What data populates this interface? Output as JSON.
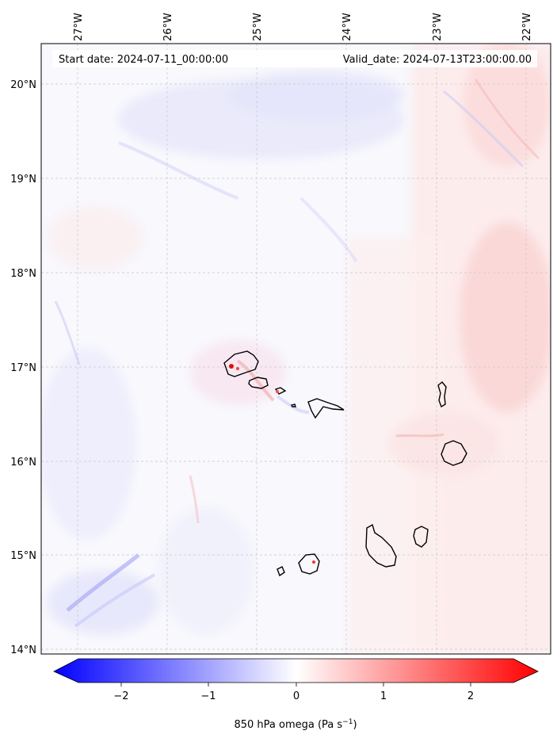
{
  "header": {
    "start_date": "Start date: 2024-07-11_00:00:00",
    "valid_date": "Valid_date: 2024-07-13T23:00:00.00"
  },
  "map": {
    "lon_labels": [
      "27°W",
      "26°W",
      "25°W",
      "24°W",
      "23°W",
      "22°W"
    ],
    "lat_labels": [
      "20°N",
      "19°N",
      "18°N",
      "17°N",
      "16°N",
      "15°N",
      "14°N"
    ],
    "features": [
      "Santo Antão",
      "São Vicente",
      "Santa Luzia",
      "São Nicolau",
      "Sal",
      "Boa Vista",
      "Maio",
      "Santiago",
      "Fogo",
      "Brava"
    ]
  },
  "colorbar": {
    "ticks": [
      "−2",
      "−1",
      "0",
      "1",
      "2"
    ],
    "range": [
      -2.6,
      2.6
    ],
    "colormap": "bwr",
    "extend": "both",
    "label": "850 hPa omega (Pa s",
    "label_sup": "−1",
    "label_end": ")"
  },
  "colors": {
    "negative": "#0000ff",
    "neutral": "#ffffff",
    "positive": "#ff0000"
  }
}
